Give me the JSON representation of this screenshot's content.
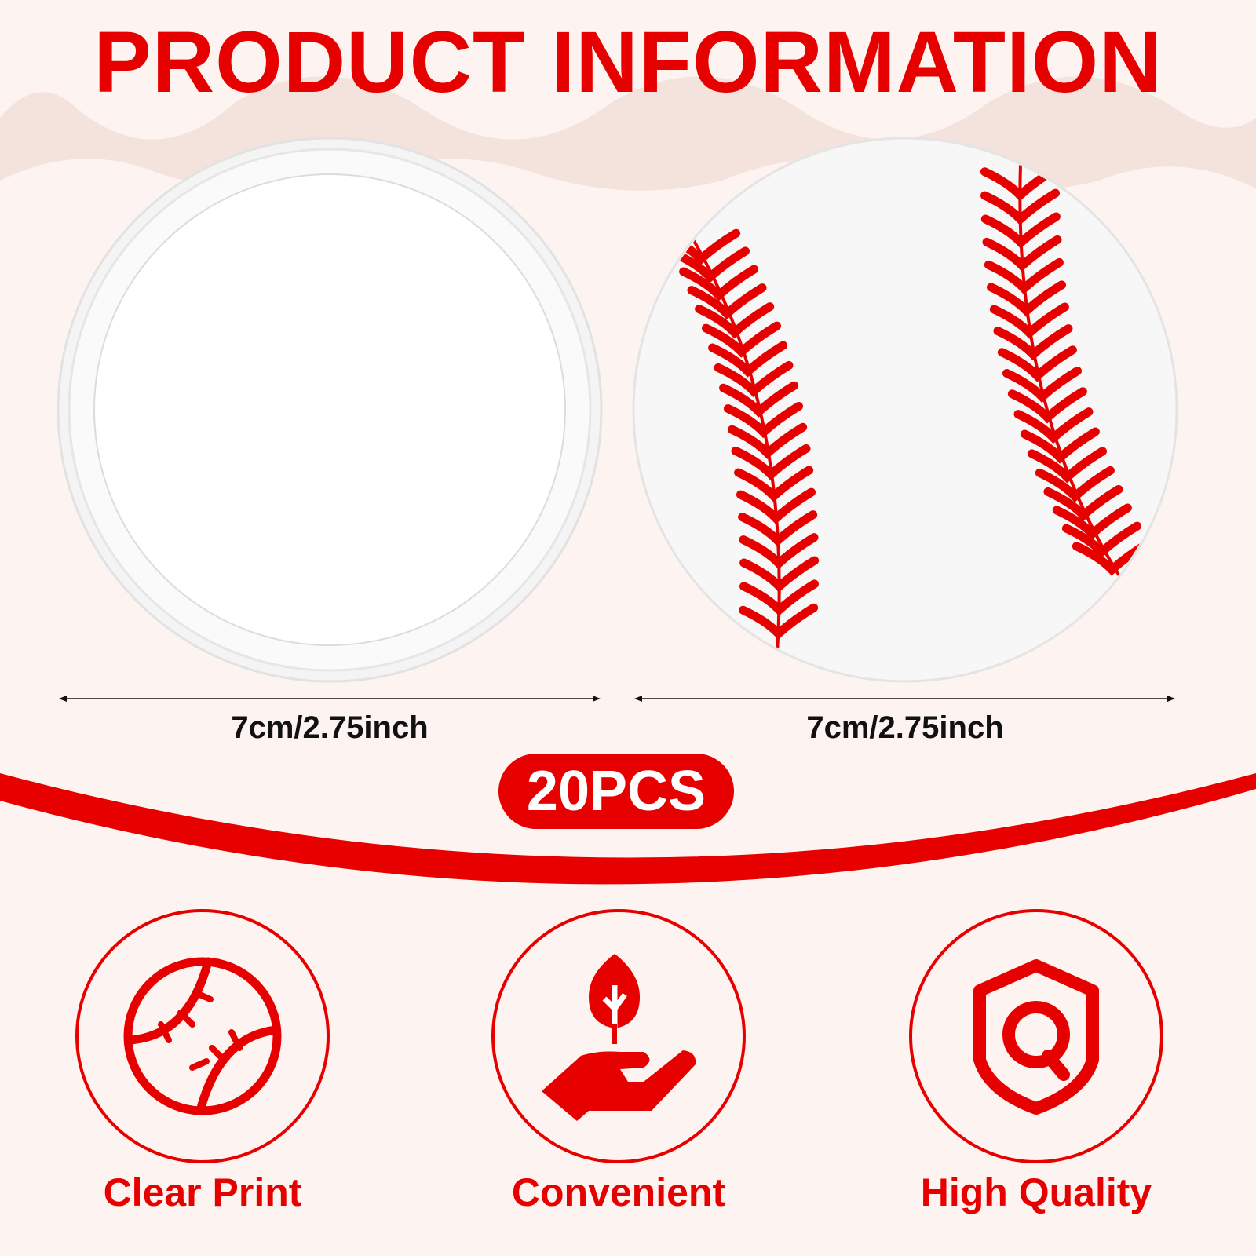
{
  "title": "PRODUCT INFORMATION",
  "products": [
    {
      "name": "blank-button",
      "size_label": "7cm/2.75inch"
    },
    {
      "name": "baseball-button",
      "size_label": "7cm/2.75inch"
    }
  ],
  "quantity_badge": "20PCS",
  "features": [
    {
      "icon": "baseball-icon",
      "label": "Clear Print"
    },
    {
      "icon": "hand-leaf-icon",
      "label": "Convenient"
    },
    {
      "icon": "shield-q-icon",
      "label": "High Quality"
    }
  ],
  "colors": {
    "accent": "#e60000",
    "background": "#fdf3f0",
    "scallop": "#f3e3dc"
  }
}
